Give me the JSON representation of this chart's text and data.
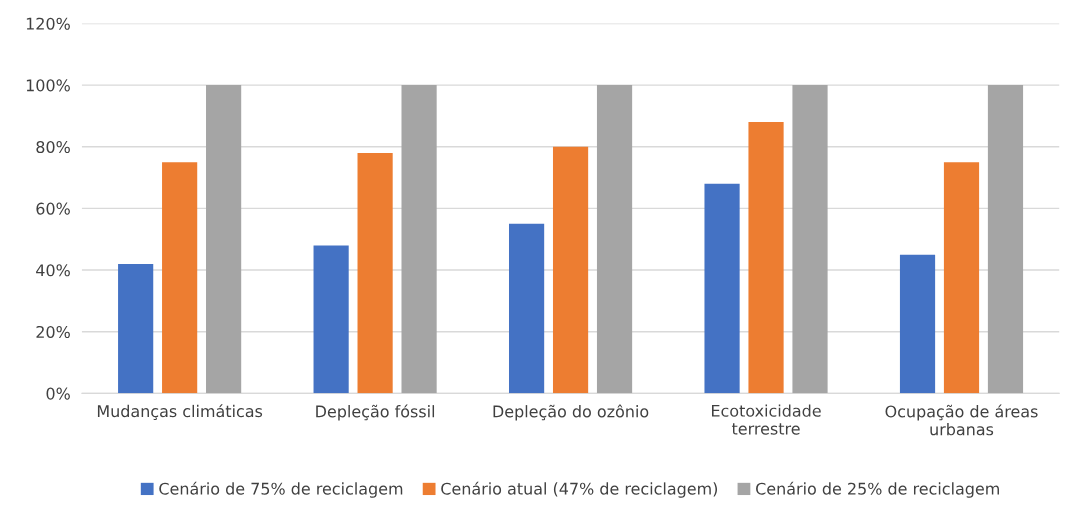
{
  "chart_data": {
    "type": "bar",
    "categories": [
      "Mudanças climáticas",
      "Depleção fóssil",
      "Depleção do ozônio",
      "Ecotoxicidade\nterrestre",
      "Ocupação de áreas\nurbanas"
    ],
    "series": [
      {
        "name": "Cenário de 75% de reciclagem",
        "color": "#4472c4",
        "values": [
          42,
          48,
          55,
          68,
          45
        ]
      },
      {
        "name": "Cenário atual (47% de reciclagem)",
        "color": "#ed7d31",
        "values": [
          75,
          78,
          80,
          88,
          75
        ]
      },
      {
        "name": "Cenário de 25% de reciclagem",
        "color": "#a5a5a5",
        "values": [
          100,
          100,
          100,
          100,
          100
        ]
      }
    ],
    "ylim": [
      0,
      120
    ],
    "yticks": [
      {
        "value": 0,
        "label": "0%"
      },
      {
        "value": 20,
        "label": "20%"
      },
      {
        "value": 40,
        "label": "40%"
      },
      {
        "value": 60,
        "label": "60%"
      },
      {
        "value": 80,
        "label": "80%"
      },
      {
        "value": 100,
        "label": "100%"
      },
      {
        "value": 120,
        "label": "120%"
      }
    ],
    "grid": "y",
    "legend": "bottom"
  }
}
